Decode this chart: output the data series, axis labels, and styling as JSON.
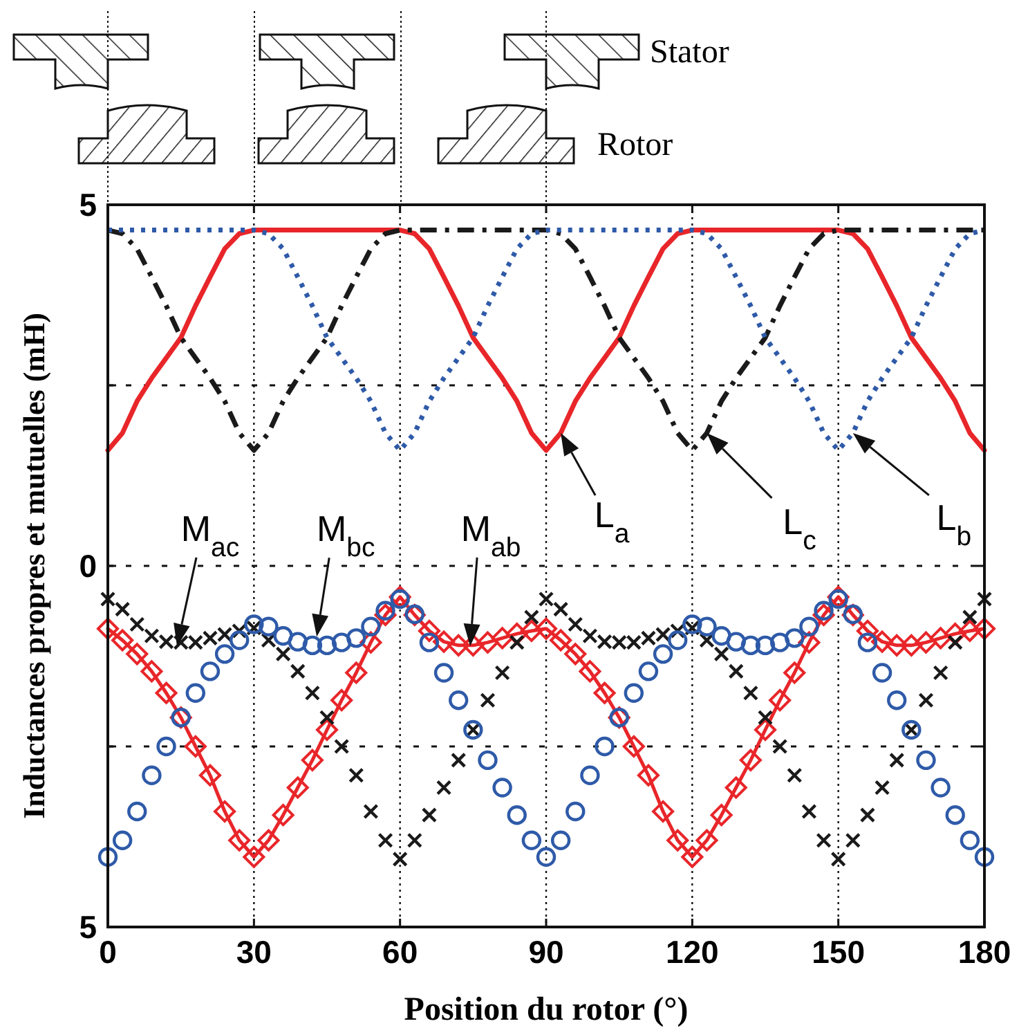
{
  "chart_data": {
    "type": "line",
    "xlabel": "Position du rotor (°)",
    "ylabel": "Inductances propres et mutuelles (mH)",
    "xlim": [
      0,
      180
    ],
    "ylim": [
      -5,
      5
    ],
    "xticks": [
      0,
      30,
      60,
      90,
      120,
      150,
      180
    ],
    "yticks": [
      {
        "value": -5,
        "label": "5"
      },
      {
        "value": -2.5,
        "label": null
      },
      0,
      {
        "value": 2.5,
        "label": null
      },
      5
    ],
    "grid": true,
    "x": [
      0,
      3,
      6,
      9,
      12,
      15,
      18,
      21,
      24,
      27,
      30,
      33,
      36,
      39,
      42,
      45,
      48,
      51,
      54,
      57,
      60,
      63,
      66,
      69,
      72,
      75,
      78,
      81,
      84,
      87,
      90,
      93,
      96,
      99,
      102,
      105,
      108,
      111,
      114,
      117,
      120,
      123,
      126,
      129,
      132,
      135,
      138,
      141,
      144,
      147,
      150,
      153,
      156,
      159,
      162,
      165,
      168,
      171,
      174,
      177,
      180
    ],
    "series": [
      {
        "type": "line",
        "color": "#e8262a",
        "line_style": "solid",
        "values": [
          1.6,
          1.84,
          2.28,
          2.6,
          2.88,
          3.16,
          3.6,
          4.0,
          4.39,
          4.6,
          4.65,
          4.65,
          4.65,
          4.65,
          4.65,
          4.65,
          4.65,
          4.65,
          4.65,
          4.65,
          4.65,
          4.6,
          4.39,
          4.0,
          3.6,
          3.16,
          2.88,
          2.6,
          2.28,
          1.84,
          1.6,
          1.84,
          2.28,
          2.6,
          2.88,
          3.16,
          3.6,
          4.0,
          4.39,
          4.6,
          4.65,
          4.65,
          4.65,
          4.65,
          4.65,
          4.65,
          4.65,
          4.65,
          4.65,
          4.65,
          4.65,
          4.6,
          4.39,
          4.0,
          3.6,
          3.16,
          2.88,
          2.6,
          2.28,
          1.84,
          1.6
        ]
      },
      {
        "type": "line",
        "color": "#1a1a1a",
        "line_style": "dashed",
        "values": [
          4.65,
          4.6,
          4.39,
          4.0,
          3.6,
          3.16,
          2.88,
          2.6,
          2.28,
          1.84,
          1.6,
          1.84,
          2.28,
          2.6,
          2.88,
          3.16,
          3.6,
          4.0,
          4.39,
          4.6,
          4.65,
          4.65,
          4.65,
          4.65,
          4.65,
          4.65,
          4.65,
          4.65,
          4.65,
          4.65,
          4.65,
          4.6,
          4.39,
          4.0,
          3.6,
          3.16,
          2.88,
          2.6,
          2.28,
          1.84,
          1.6,
          1.84,
          2.28,
          2.6,
          2.88,
          3.16,
          3.6,
          4.0,
          4.39,
          4.6,
          4.65,
          4.65,
          4.65,
          4.65,
          4.65,
          4.65,
          4.65,
          4.65,
          4.65,
          4.65,
          4.65
        ]
      },
      {
        "type": "line",
        "color": "#2e5aa8",
        "line_style": "dotted",
        "values": [
          4.65,
          4.65,
          4.65,
          4.65,
          4.65,
          4.65,
          4.65,
          4.65,
          4.65,
          4.65,
          4.65,
          4.6,
          4.39,
          4.0,
          3.6,
          3.16,
          2.88,
          2.6,
          2.28,
          1.84,
          1.6,
          1.84,
          2.28,
          2.6,
          2.88,
          3.16,
          3.6,
          4.0,
          4.39,
          4.6,
          4.65,
          4.65,
          4.65,
          4.65,
          4.65,
          4.65,
          4.65,
          4.65,
          4.65,
          4.65,
          4.65,
          4.6,
          4.39,
          4.0,
          3.6,
          3.16,
          2.88,
          2.6,
          2.28,
          1.84,
          1.6,
          1.84,
          2.28,
          2.6,
          2.88,
          3.16,
          3.6,
          4.0,
          4.39,
          4.6,
          4.65
        ]
      },
      {
        "type": "scatter",
        "color": "#1a1a1a",
        "marker": "cross",
        "values": [
          -0.46,
          -0.6,
          -0.81,
          -0.97,
          -1.05,
          -1.06,
          -1.06,
          -1.0,
          -0.95,
          -0.9,
          -0.86,
          -1.03,
          -1.22,
          -1.46,
          -1.76,
          -2.1,
          -2.5,
          -2.9,
          -3.4,
          -3.8,
          -4.06,
          -3.8,
          -3.45,
          -3.07,
          -2.69,
          -2.27,
          -1.86,
          -1.48,
          -1.06,
          -0.71,
          -0.46,
          -0.6,
          -0.81,
          -0.97,
          -1.05,
          -1.06,
          -1.06,
          -1.0,
          -0.95,
          -0.9,
          -0.86,
          -1.03,
          -1.22,
          -1.46,
          -1.76,
          -2.1,
          -2.5,
          -2.9,
          -3.4,
          -3.8,
          -4.06,
          -3.8,
          -3.45,
          -3.07,
          -2.69,
          -2.27,
          -1.86,
          -1.48,
          -1.06,
          -0.71,
          -0.46
        ]
      },
      {
        "type": "scatter",
        "color": "#2e5aa8",
        "marker": "circle",
        "values": [
          -4.03,
          -3.8,
          -3.4,
          -2.9,
          -2.5,
          -2.1,
          -1.76,
          -1.46,
          -1.22,
          -1.03,
          -0.81,
          -0.84,
          -0.97,
          -1.05,
          -1.1,
          -1.1,
          -1.06,
          -1.0,
          -0.84,
          -0.62,
          -0.46,
          -0.67,
          -1.06,
          -1.48,
          -1.86,
          -2.27,
          -2.69,
          -3.07,
          -3.45,
          -3.8,
          -4.03,
          -3.8,
          -3.4,
          -2.9,
          -2.5,
          -2.1,
          -1.76,
          -1.46,
          -1.22,
          -1.03,
          -0.81,
          -0.84,
          -0.97,
          -1.05,
          -1.1,
          -1.1,
          -1.06,
          -1.0,
          -0.84,
          -0.62,
          -0.46,
          -0.67,
          -1.06,
          -1.48,
          -1.86,
          -2.27,
          -2.69,
          -3.07,
          -3.45,
          -3.8,
          -4.03
        ]
      },
      {
        "type": "line",
        "color": "#e8262a",
        "line_style": "solid",
        "marker": "diamond",
        "values": [
          -0.87,
          -1.03,
          -1.22,
          -1.46,
          -1.76,
          -2.1,
          -2.5,
          -2.9,
          -3.4,
          -3.8,
          -4.03,
          -3.8,
          -3.45,
          -3.07,
          -2.69,
          -2.27,
          -1.86,
          -1.48,
          -1.06,
          -0.68,
          -0.43,
          -0.68,
          -0.9,
          -1.05,
          -1.1,
          -1.1,
          -1.06,
          -1.0,
          -0.94,
          -0.9,
          -0.87,
          -1.03,
          -1.22,
          -1.46,
          -1.76,
          -2.1,
          -2.5,
          -2.9,
          -3.4,
          -3.8,
          -4.03,
          -3.8,
          -3.45,
          -3.07,
          -2.69,
          -2.27,
          -1.86,
          -1.48,
          -1.06,
          -0.68,
          -0.43,
          -0.68,
          -0.9,
          -1.05,
          -1.1,
          -1.1,
          -1.06,
          -1.0,
          -0.94,
          -0.9,
          -0.87
        ]
      }
    ],
    "annotations": [
      "Stator",
      "Rotor",
      {
        "text": "L$_{a}$",
        "x": 93,
        "y": 1.84
      },
      {
        "text": "L$_{c}$",
        "x": 123,
        "y": 1.84
      },
      {
        "text": "L$_{b}$",
        "x": 153,
        "y": 1.84
      },
      {
        "text": "M$_{ac}$",
        "x": 14.2,
        "y": -1.11
      },
      {
        "text": "M$_{bc}$",
        "x": 42.9,
        "y": -0.98
      },
      {
        "text": "M$_{ab}$",
        "x": 74.4,
        "y": -1.11
      }
    ]
  }
}
